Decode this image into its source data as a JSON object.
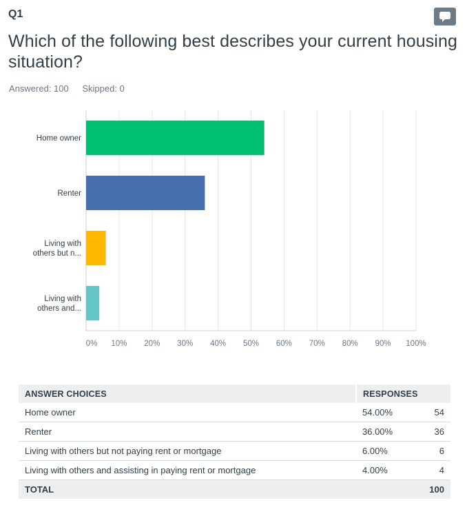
{
  "question": {
    "number": "Q1",
    "title": "Which of the following best describes your current housing situation?",
    "answered": "Answered: 100",
    "skipped": "Skipped: 0",
    "comment_icon": "comment-icon"
  },
  "chart_data": {
    "type": "bar",
    "orientation": "horizontal",
    "categories": [
      "Home owner",
      "Renter",
      "Living with others but n...",
      "Living with others and..."
    ],
    "category_lines": [
      [
        "Home owner"
      ],
      [
        "Renter"
      ],
      [
        "Living with",
        "others but n..."
      ],
      [
        "Living with",
        "others and..."
      ]
    ],
    "values": [
      54,
      36,
      6,
      4
    ],
    "colors": [
      "#00bf6f",
      "#476fb0",
      "#ffb800",
      "#62c5c6"
    ],
    "xlim": [
      0,
      100
    ],
    "xticks": [
      "0%",
      "10%",
      "20%",
      "30%",
      "40%",
      "50%",
      "60%",
      "70%",
      "80%",
      "90%",
      "100%"
    ],
    "grid": true
  },
  "table": {
    "headers": [
      "ANSWER CHOICES",
      "RESPONSES"
    ],
    "rows": [
      {
        "choice": "Home owner",
        "percent": "54.00%",
        "count": "54"
      },
      {
        "choice": "Renter",
        "percent": "36.00%",
        "count": "36"
      },
      {
        "choice": "Living with others but not paying rent or mortgage",
        "percent": "6.00%",
        "count": "6"
      },
      {
        "choice": "Living with others and assisting in paying rent or mortgage",
        "percent": "4.00%",
        "count": "4"
      }
    ],
    "total_label": "TOTAL",
    "total_value": "100"
  }
}
